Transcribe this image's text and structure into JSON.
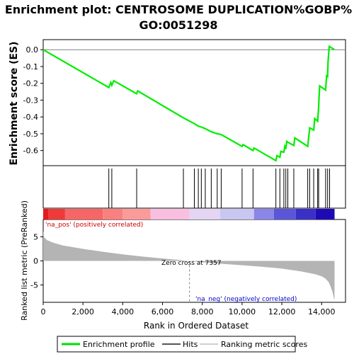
{
  "chart_data": {
    "type": "line",
    "title_line1": "Enrichment plot: CENTROSOME DUPLICATION%GOBP%",
    "title_line2": "GO:0051298",
    "ylabel_top": "Enrichment score (ES)",
    "ylabel_bottom": "Ranked list metric (PreRanked)",
    "xlabel": "Rank in Ordered Dataset",
    "x_range": [
      0,
      15200
    ],
    "es_ylim": [
      -0.69,
      0.06
    ],
    "es_yticks": [
      0.0,
      -0.1,
      -0.2,
      -0.3,
      -0.4,
      -0.5,
      -0.6
    ],
    "es_ytick_labels": [
      "0.0",
      "-0.1",
      "-0.2",
      "-0.3",
      "-0.4",
      "-0.5",
      "-0.6"
    ],
    "metric_ylim": [
      -8.6,
      8.6
    ],
    "metric_yticks": [
      5,
      0,
      -5
    ],
    "metric_ytick_labels": [
      "5",
      "0",
      "-5"
    ],
    "xticks": [
      0,
      2000,
      4000,
      6000,
      8000,
      10000,
      12000,
      14000
    ],
    "xtick_labels": [
      "0",
      "2,000",
      "4,000",
      "6,000",
      "8,000",
      "10,000",
      "12,000",
      "14,000"
    ],
    "n_genes": 14650,
    "hits": [
      3300,
      3450,
      4700,
      7050,
      7600,
      7800,
      7950,
      8150,
      8450,
      8750,
      8950,
      10000,
      10550,
      11700,
      11900,
      12100,
      12200,
      12300,
      12600,
      13300,
      13400,
      13600,
      13800,
      13850,
      14200,
      14300,
      14400
    ],
    "es_curve": [
      [
        0,
        0.0
      ],
      [
        3300,
        -0.225
      ],
      [
        3400,
        -0.195
      ],
      [
        3450,
        -0.212
      ],
      [
        3550,
        -0.185
      ],
      [
        4700,
        -0.262
      ],
      [
        4750,
        -0.245
      ],
      [
        7050,
        -0.405
      ],
      [
        7600,
        -0.44
      ],
      [
        7800,
        -0.455
      ],
      [
        7950,
        -0.46
      ],
      [
        8150,
        -0.47
      ],
      [
        8450,
        -0.488
      ],
      [
        8750,
        -0.5
      ],
      [
        8950,
        -0.505
      ],
      [
        10000,
        -0.575
      ],
      [
        10050,
        -0.565
      ],
      [
        10550,
        -0.6
      ],
      [
        10600,
        -0.585
      ],
      [
        11700,
        -0.66
      ],
      [
        11750,
        -0.63
      ],
      [
        11900,
        -0.64
      ],
      [
        11950,
        -0.605
      ],
      [
        12100,
        -0.61
      ],
      [
        12150,
        -0.575
      ],
      [
        12200,
        -0.59
      ],
      [
        12250,
        -0.545
      ],
      [
        12300,
        -0.55
      ],
      [
        12600,
        -0.57
      ],
      [
        12650,
        -0.525
      ],
      [
        13300,
        -0.575
      ],
      [
        13350,
        -0.52
      ],
      [
        13400,
        -0.465
      ],
      [
        13600,
        -0.478
      ],
      [
        13650,
        -0.41
      ],
      [
        13800,
        -0.425
      ],
      [
        13850,
        -0.34
      ],
      [
        13870,
        -0.285
      ],
      [
        13900,
        -0.215
      ],
      [
        14200,
        -0.24
      ],
      [
        14250,
        -0.155
      ],
      [
        14300,
        -0.16
      ],
      [
        14320,
        -0.075
      ],
      [
        14380,
        0.02
      ],
      [
        14650,
        0.0
      ]
    ],
    "metric_curve": [
      [
        0,
        6.2
      ],
      [
        50,
        4.9
      ],
      [
        200,
        4.3
      ],
      [
        500,
        3.8
      ],
      [
        1000,
        3.2
      ],
      [
        2000,
        2.5
      ],
      [
        3000,
        1.9
      ],
      [
        4000,
        1.35
      ],
      [
        5000,
        0.9
      ],
      [
        6000,
        0.5
      ],
      [
        7000,
        0.15
      ],
      [
        7357,
        0.0
      ],
      [
        8000,
        -0.3
      ],
      [
        9000,
        -0.6
      ],
      [
        10000,
        -0.9
      ],
      [
        11000,
        -1.2
      ],
      [
        12000,
        -1.6
      ],
      [
        13000,
        -2.2
      ],
      [
        13700,
        -2.8
      ],
      [
        14000,
        -3.2
      ],
      [
        14200,
        -3.7
      ],
      [
        14350,
        -4.4
      ],
      [
        14450,
        -5.3
      ],
      [
        14550,
        -6.5
      ],
      [
        14620,
        -7.8
      ],
      [
        14650,
        -8.1
      ]
    ],
    "heatmap_colors": [
      {
        "from": 0,
        "to": 250,
        "color": "#e31a1c"
      },
      {
        "from": 250,
        "to": 1100,
        "color": "#f03a38"
      },
      {
        "from": 1100,
        "to": 3000,
        "color": "#f76666"
      },
      {
        "from": 3000,
        "to": 4000,
        "color": "#fa8080"
      },
      {
        "from": 4000,
        "to": 5400,
        "color": "#fc9a9a"
      },
      {
        "from": 5400,
        "to": 7350,
        "color": "#f9bfe0"
      },
      {
        "from": 7350,
        "to": 8900,
        "color": "#e4d6f2"
      },
      {
        "from": 8900,
        "to": 10600,
        "color": "#c9c6f2"
      },
      {
        "from": 10600,
        "to": 11600,
        "color": "#8a86e8"
      },
      {
        "from": 11600,
        "to": 12700,
        "color": "#5b55d8"
      },
      {
        "from": 12700,
        "to": 13700,
        "color": "#3a30c6"
      },
      {
        "from": 13700,
        "to": 14650,
        "color": "#1e0ab4"
      }
    ],
    "annotations": {
      "na_pos": "'na_pos' (positively correlated)",
      "na_neg": "'na_neg' (negatively correlated)",
      "zero_cross": "Zero cross at 7357",
      "zero_cross_rank": 7357
    },
    "legend": {
      "entries": [
        {
          "label": "Enrichment profile",
          "color": "#00dd00"
        },
        {
          "label": "Hits",
          "color": "#555555"
        },
        {
          "label": "Ranking metric scores",
          "color": "#c8c8c8"
        }
      ]
    },
    "colors": {
      "es_line": "#00ee00",
      "metric_fill": "#b4b4b4",
      "hit": "#000000",
      "na_pos": "#cc0000",
      "na_neg": "#0000cc",
      "zero_line": "#808080"
    },
    "grid": false
  }
}
